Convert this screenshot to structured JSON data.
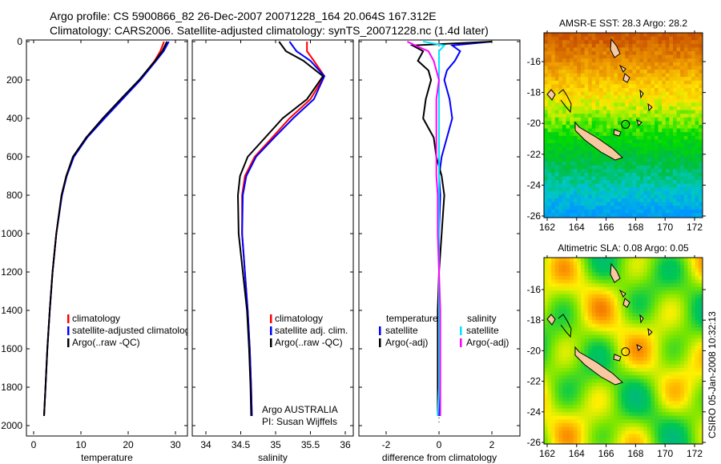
{
  "title_line1": "Argo profile: CS 5900866_82 26-Dec-2007 20071228_164 20.064S 167.312E",
  "title_line2": "Climatology: CARS2006. Satellite-adjusted climatology: synTS_20071228.nc (1.4d later)",
  "side_stamp": "CSIRO 05-Jan-2008 10:32:13",
  "chart_data": [
    {
      "type": "line",
      "name": "temperature-profile",
      "xlabel": "temperature",
      "ylabel": "",
      "xlim": [
        -2,
        32
      ],
      "ylim": [
        2000,
        0
      ],
      "xticks": [
        "0",
        "10",
        "20",
        "30"
      ],
      "xtick_values": [
        0,
        10,
        20,
        30
      ],
      "yticks": [
        "0",
        "200",
        "400",
        "600",
        "800",
        "1000",
        "1200",
        "1400",
        "1600",
        "1800",
        "2000"
      ],
      "depth": [
        0,
        50,
        100,
        200,
        300,
        400,
        500,
        600,
        700,
        800,
        1000,
        1200,
        1400,
        1600,
        1800,
        1950
      ],
      "series": [
        {
          "name": "climatology",
          "color": "#ff0000",
          "values": [
            27.6,
            26.8,
            25.6,
            22.4,
            18.6,
            14.8,
            11.2,
            8.4,
            6.9,
            5.9,
            4.8,
            4.0,
            3.4,
            2.9,
            2.5,
            2.2
          ]
        },
        {
          "name": "satellite-adjusted climatology",
          "color": "#0000ff",
          "values": [
            28.6,
            27.5,
            25.9,
            22.6,
            18.8,
            15.0,
            11.3,
            8.5,
            7.0,
            6.0,
            4.8,
            4.0,
            3.4,
            2.9,
            2.5,
            2.2
          ]
        },
        {
          "name": "Argo(..raw -QC)",
          "color": "#000000",
          "values": [
            28.2,
            27.2,
            25.7,
            22.3,
            18.4,
            14.6,
            11.1,
            8.3,
            6.9,
            5.9,
            4.8,
            4.0,
            3.4,
            2.9,
            2.5,
            2.2
          ]
        }
      ],
      "legend": [
        "climatology",
        "satellite-adjusted climatology",
        "Argo(..raw -QC)"
      ]
    },
    {
      "type": "line",
      "name": "salinity-profile",
      "xlabel": "salinity",
      "xlim": [
        33.8,
        36.2
      ],
      "ylim": [
        2000,
        0
      ],
      "xticks": [
        "34",
        "34.5",
        "35",
        "35.5",
        "36"
      ],
      "xtick_values": [
        34,
        34.5,
        35,
        35.5,
        36
      ],
      "depth": [
        0,
        50,
        100,
        180,
        300,
        400,
        500,
        600,
        700,
        800,
        1000,
        1200,
        1400,
        1600,
        1800,
        1950
      ],
      "series": [
        {
          "name": "climatology",
          "color": "#ff0000",
          "values": [
            35.45,
            35.45,
            35.55,
            35.7,
            35.5,
            35.2,
            34.95,
            34.7,
            34.56,
            34.52,
            34.52,
            34.56,
            34.6,
            34.63,
            34.65,
            34.66
          ]
        },
        {
          "name": "satellite adj. clim.",
          "color": "#0000ff",
          "values": [
            35.2,
            35.3,
            35.5,
            35.7,
            35.55,
            35.25,
            34.98,
            34.72,
            34.58,
            34.53,
            34.52,
            34.56,
            34.6,
            34.63,
            34.65,
            34.66
          ]
        },
        {
          "name": "Argo(..raw -QC)",
          "color": "#000000",
          "values": [
            35.05,
            35.15,
            35.4,
            35.68,
            35.45,
            35.1,
            34.85,
            34.6,
            34.49,
            34.46,
            34.47,
            34.53,
            34.59,
            34.62,
            34.64,
            34.65
          ]
        }
      ],
      "legend": [
        "climatology",
        "satellite adj. clim.",
        "Argo(..raw -QC)"
      ],
      "annotation": [
        "Argo AUSTRALIA",
        "PI: Susan Wijffels"
      ]
    },
    {
      "type": "line",
      "name": "difference-profile",
      "xlabel": "difference from climatology",
      "xlim": [
        -3,
        3
      ],
      "ylim": [
        2000,
        0
      ],
      "xticks": [
        "-2",
        "0",
        "2"
      ],
      "xtick_values": [
        -2,
        0,
        2
      ],
      "depth": [
        0,
        20,
        50,
        100,
        150,
        200,
        300,
        400,
        500,
        600,
        700,
        800,
        1000,
        1200,
        1400,
        1600,
        1800,
        1950
      ],
      "series": [
        {
          "name": "temperature satellite",
          "color": "#0000ff",
          "values": [
            2.0,
            0.5,
            0.8,
            0.6,
            0.3,
            0.2,
            0.4,
            0.5,
            0.3,
            0.1,
            0.0,
            0.05,
            0.0,
            0.0,
            0.0,
            0.0,
            0.0,
            0.0
          ]
        },
        {
          "name": "temperature Argo(-adj)",
          "color": "#000000",
          "values": [
            2.0,
            -1.0,
            -0.6,
            -0.8,
            -0.4,
            -0.3,
            -0.5,
            -0.6,
            -0.2,
            -0.1,
            0.1,
            0.2,
            0.1,
            0.0,
            -0.05,
            -0.05,
            -0.05,
            -0.05
          ]
        },
        {
          "name": "salinity satellite",
          "color": "#00e5ff",
          "values": [
            -0.6,
            0.2,
            0.0,
            0.0,
            0.0,
            0.0,
            0.0,
            0.0,
            0.0,
            0.0,
            0.0,
            0.0,
            0.0,
            0.0,
            0.0,
            0.0,
            0.0,
            -0.05
          ]
        },
        {
          "name": "salinity Argo(-adj)",
          "color": "#ff00ff",
          "values": [
            -1.2,
            -0.9,
            -0.4,
            -0.2,
            -0.1,
            0.0,
            -0.1,
            -0.1,
            -0.1,
            -0.1,
            -0.1,
            -0.05,
            -0.05,
            0.0,
            0.05,
            0.05,
            0.05,
            0.05
          ]
        }
      ],
      "legend_headers": [
        "temperature",
        "salinity"
      ],
      "legend": [
        "satellite",
        "Argo(-adj)",
        "satellite",
        "Argo(-adj)"
      ]
    },
    {
      "type": "heatmap",
      "name": "sst-map",
      "title": "AMSR-E SST: 28.3 Argo: 28.2",
      "xticks": [
        "162",
        "164",
        "166",
        "168",
        "170",
        "172"
      ],
      "yticks": [
        "-16",
        "-18",
        "-20",
        "-22",
        "-24",
        "-26"
      ]
    },
    {
      "type": "heatmap",
      "name": "sla-map",
      "title": "Altimetric SLA: 0.08 Argo: 0.05",
      "xticks": [
        "162",
        "164",
        "166",
        "168",
        "170",
        "172"
      ],
      "yticks": [
        "-16",
        "-18",
        "-20",
        "-22",
        "-24",
        "-26"
      ]
    }
  ]
}
